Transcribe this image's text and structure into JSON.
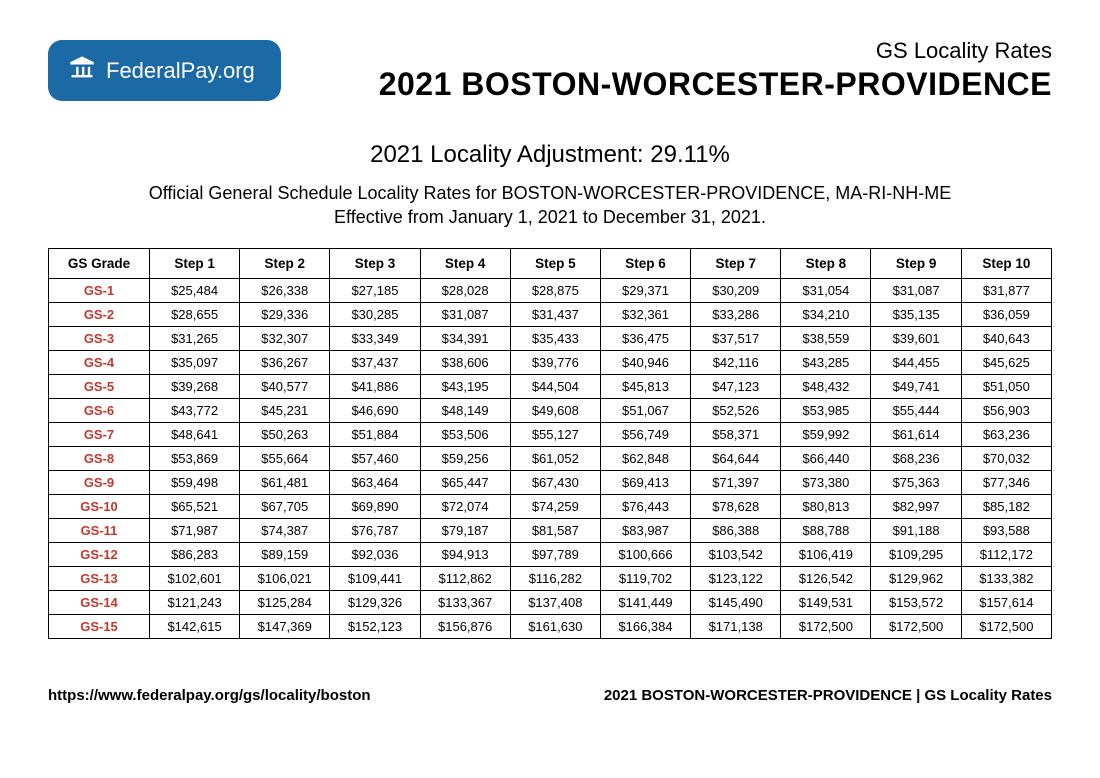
{
  "logo": {
    "word1": "Federal",
    "word2": "Pay",
    "suffix": ".org"
  },
  "header": {
    "subtitle": "GS Locality Rates",
    "title": "2021 BOSTON-WORCESTER-PROVIDENCE"
  },
  "adjustment": "2021 Locality Adjustment: 29.11%",
  "description_line1": "Official General Schedule Locality Rates for BOSTON-WORCESTER-PROVIDENCE, MA-RI-NH-ME",
  "description_line2": "Effective from January 1, 2021 to December 31, 2021.",
  "table": {
    "columns": [
      "GS Grade",
      "Step 1",
      "Step 2",
      "Step 3",
      "Step 4",
      "Step 5",
      "Step 6",
      "Step 7",
      "Step 8",
      "Step 9",
      "Step 10"
    ],
    "rows": [
      [
        "GS-1",
        "$25,484",
        "$26,338",
        "$27,185",
        "$28,028",
        "$28,875",
        "$29,371",
        "$30,209",
        "$31,054",
        "$31,087",
        "$31,877"
      ],
      [
        "GS-2",
        "$28,655",
        "$29,336",
        "$30,285",
        "$31,087",
        "$31,437",
        "$32,361",
        "$33,286",
        "$34,210",
        "$35,135",
        "$36,059"
      ],
      [
        "GS-3",
        "$31,265",
        "$32,307",
        "$33,349",
        "$34,391",
        "$35,433",
        "$36,475",
        "$37,517",
        "$38,559",
        "$39,601",
        "$40,643"
      ],
      [
        "GS-4",
        "$35,097",
        "$36,267",
        "$37,437",
        "$38,606",
        "$39,776",
        "$40,946",
        "$42,116",
        "$43,285",
        "$44,455",
        "$45,625"
      ],
      [
        "GS-5",
        "$39,268",
        "$40,577",
        "$41,886",
        "$43,195",
        "$44,504",
        "$45,813",
        "$47,123",
        "$48,432",
        "$49,741",
        "$51,050"
      ],
      [
        "GS-6",
        "$43,772",
        "$45,231",
        "$46,690",
        "$48,149",
        "$49,608",
        "$51,067",
        "$52,526",
        "$53,985",
        "$55,444",
        "$56,903"
      ],
      [
        "GS-7",
        "$48,641",
        "$50,263",
        "$51,884",
        "$53,506",
        "$55,127",
        "$56,749",
        "$58,371",
        "$59,992",
        "$61,614",
        "$63,236"
      ],
      [
        "GS-8",
        "$53,869",
        "$55,664",
        "$57,460",
        "$59,256",
        "$61,052",
        "$62,848",
        "$64,644",
        "$66,440",
        "$68,236",
        "$70,032"
      ],
      [
        "GS-9",
        "$59,498",
        "$61,481",
        "$63,464",
        "$65,447",
        "$67,430",
        "$69,413",
        "$71,397",
        "$73,380",
        "$75,363",
        "$77,346"
      ],
      [
        "GS-10",
        "$65,521",
        "$67,705",
        "$69,890",
        "$72,074",
        "$74,259",
        "$76,443",
        "$78,628",
        "$80,813",
        "$82,997",
        "$85,182"
      ],
      [
        "GS-11",
        "$71,987",
        "$74,387",
        "$76,787",
        "$79,187",
        "$81,587",
        "$83,987",
        "$86,388",
        "$88,788",
        "$91,188",
        "$93,588"
      ],
      [
        "GS-12",
        "$86,283",
        "$89,159",
        "$92,036",
        "$94,913",
        "$97,789",
        "$100,666",
        "$103,542",
        "$106,419",
        "$109,295",
        "$112,172"
      ],
      [
        "GS-13",
        "$102,601",
        "$106,021",
        "$109,441",
        "$112,862",
        "$116,282",
        "$119,702",
        "$123,122",
        "$126,542",
        "$129,962",
        "$133,382"
      ],
      [
        "GS-14",
        "$121,243",
        "$125,284",
        "$129,326",
        "$133,367",
        "$137,408",
        "$141,449",
        "$145,490",
        "$149,531",
        "$153,572",
        "$157,614"
      ],
      [
        "GS-15",
        "$142,615",
        "$147,369",
        "$152,123",
        "$156,876",
        "$161,630",
        "$166,384",
        "$171,138",
        "$172,500",
        "$172,500",
        "$172,500"
      ]
    ],
    "grade_color": "#c0392b",
    "border_color": "#000000"
  },
  "footer": {
    "url": "https://www.federalpay.org/gs/locality/boston",
    "right": "2021 BOSTON-WORCESTER-PROVIDENCE | GS Locality Rates"
  },
  "colors": {
    "logo_bg": "#1b6aa5",
    "background": "#ffffff"
  }
}
